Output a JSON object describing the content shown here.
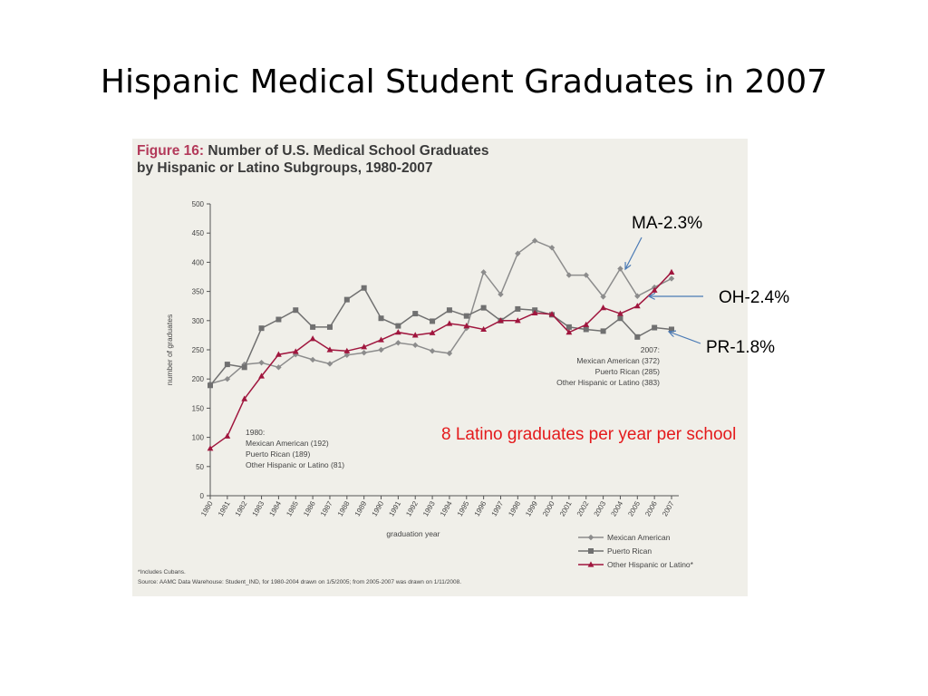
{
  "slide": {
    "title": "Hispanic Medical Student Graduates in 2007"
  },
  "figure": {
    "number": "Figure 16:",
    "title_line1": "Number of U.S. Medical School Graduates",
    "title_line2": "by Hispanic or Latino Subgroups, 1980-2007",
    "note_1980": {
      "heading": "1980:",
      "lines": [
        "Mexican American (192)",
        "Puerto Rican (189)",
        "Other Hispanic or Latino (81)"
      ]
    },
    "note_2007": {
      "heading": "2007:",
      "lines": [
        "Mexican American (372)",
        "Puerto Rican (285)",
        "Other Hispanic or Latino (383)"
      ]
    },
    "footnote_1": "*Includes Cubans.",
    "footnote_2": "Source: AAMC Data Warehouse: Student_IND, for 1980-2004 drawn on 1/5/2005; from 2005-2007 was drawn on 1/11/2008."
  },
  "callouts": {
    "ma": "MA-2.3%",
    "oh": "OH-2.4%",
    "pr": "PR-1.8%",
    "summary": "8 Latino graduates per year per school"
  },
  "colors": {
    "mexican_american": "#8c8c8c",
    "puerto_rican": "#707070",
    "other_hispanic": "#a0163e",
    "arrow": "#4a7ab5",
    "summary_text": "#e41a1c"
  },
  "chart_data": {
    "type": "line",
    "title": "Number of U.S. Medical School Graduates by Hispanic or Latino Subgroups, 1980-2007",
    "xlabel": "graduation year",
    "ylabel": "number of graduates",
    "ylim": [
      0,
      500
    ],
    "yticks": [
      0,
      50,
      100,
      150,
      200,
      250,
      300,
      350,
      400,
      450,
      500
    ],
    "grid": false,
    "legend_position": "bottom-right",
    "categories": [
      "1980",
      "1981",
      "1982",
      "1983",
      "1984",
      "1985",
      "1986",
      "1987",
      "1988",
      "1989",
      "1990",
      "1991",
      "1992",
      "1993",
      "1994",
      "1995",
      "1996",
      "1997",
      "1998",
      "1999",
      "2000",
      "2001",
      "2002",
      "2003",
      "2004",
      "2005",
      "2006",
      "2007"
    ],
    "series": [
      {
        "name": "Mexican American",
        "marker": "diamond",
        "values": [
          192,
          200,
          225,
          228,
          220,
          242,
          233,
          226,
          241,
          245,
          250,
          262,
          258,
          248,
          244,
          287,
          383,
          345,
          415,
          437,
          425,
          378,
          378,
          341,
          389,
          342,
          357,
          372
        ]
      },
      {
        "name": "Puerto Rican",
        "marker": "square",
        "values": [
          189,
          225,
          220,
          287,
          302,
          318,
          289,
          289,
          336,
          356,
          304,
          291,
          312,
          299,
          318,
          308,
          322,
          300,
          320,
          318,
          310,
          289,
          285,
          282,
          304,
          272,
          288,
          285
        ]
      },
      {
        "name": "Other Hispanic or Latino*",
        "marker": "triangle",
        "values": [
          81,
          102,
          166,
          205,
          242,
          247,
          269,
          250,
          248,
          255,
          267,
          280,
          275,
          279,
          295,
          291,
          285,
          300,
          300,
          313,
          311,
          280,
          293,
          322,
          312,
          325,
          352,
          383
        ]
      }
    ]
  }
}
